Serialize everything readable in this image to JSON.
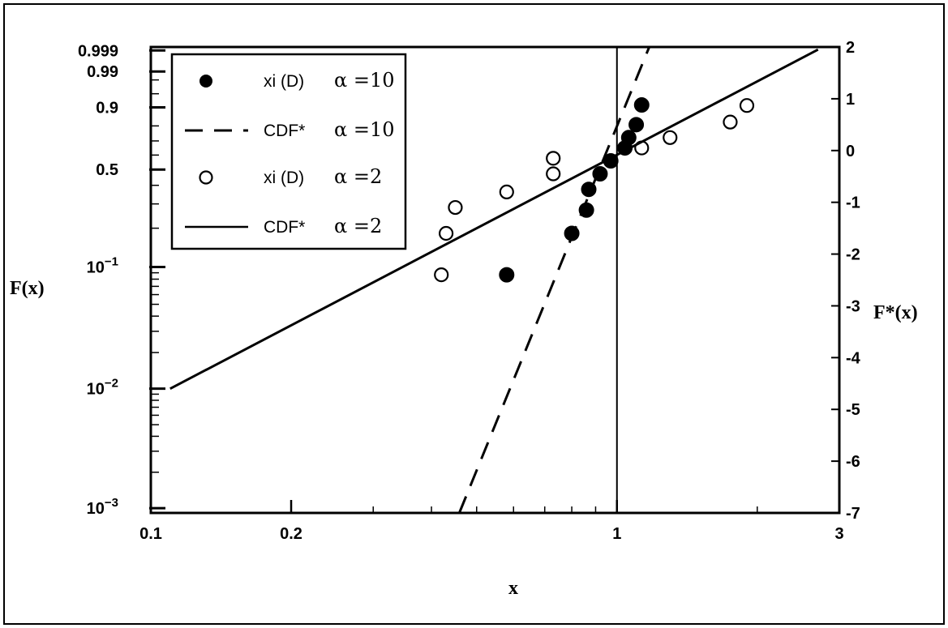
{
  "chart_data": {
    "type": "scatter",
    "x_scale": "log",
    "xlim": [
      0.1,
      3
    ],
    "xlabel": "x",
    "ylabel_left": "F(x)",
    "ylabel_right": "F*(x)",
    "right_ylim": [
      -7,
      2
    ],
    "x_ticks": [
      {
        "value": 0.1,
        "label": "0.1"
      },
      {
        "value": 0.2,
        "label": "0.2"
      },
      {
        "value": 1,
        "label": "1"
      },
      {
        "value": 3,
        "label": "3"
      }
    ],
    "left_ticks": [
      {
        "fstar": 1.9326,
        "label": "0.999"
      },
      {
        "fstar": 1.5272,
        "label": "0.99"
      },
      {
        "fstar": 0.834,
        "label": "0.9"
      },
      {
        "fstar": -0.3665,
        "label": "0.5"
      },
      {
        "fstar": -2.2504,
        "label": "10^-1"
      },
      {
        "fstar": -4.6002,
        "label": "10^-2"
      },
      {
        "fstar": -6.9073,
        "label": "10^-3"
      }
    ],
    "right_ticks": [
      2,
      1,
      0,
      -1,
      -2,
      -3,
      -4,
      -5,
      -6,
      -7
    ],
    "series": [
      {
        "name": "xi (D)",
        "alpha_label": "α =10",
        "kind": "points",
        "marker": "filled-circle",
        "points": [
          {
            "x": 0.58,
            "y": -2.4
          },
          {
            "x": 0.8,
            "y": -1.6
          },
          {
            "x": 0.86,
            "y": -1.15
          },
          {
            "x": 0.87,
            "y": -0.75
          },
          {
            "x": 0.92,
            "y": -0.45
          },
          {
            "x": 0.97,
            "y": -0.2
          },
          {
            "x": 1.04,
            "y": 0.05
          },
          {
            "x": 1.06,
            "y": 0.25
          },
          {
            "x": 1.1,
            "y": 0.5
          },
          {
            "x": 1.13,
            "y": 0.88
          }
        ]
      },
      {
        "name": "CDF*",
        "alpha_label": "α =10",
        "kind": "line",
        "style": "dashed",
        "points": [
          {
            "x": 0.459,
            "y": -7
          },
          {
            "x": 1.173,
            "y": 2
          }
        ]
      },
      {
        "name": "xi (D)",
        "alpha_label": "α =2",
        "kind": "points",
        "marker": "open-circle",
        "points": [
          {
            "x": 0.42,
            "y": -2.4
          },
          {
            "x": 0.43,
            "y": -1.6
          },
          {
            "x": 0.45,
            "y": -1.1
          },
          {
            "x": 0.58,
            "y": -0.8
          },
          {
            "x": 0.73,
            "y": -0.45
          },
          {
            "x": 0.73,
            "y": -0.15
          },
          {
            "x": 1.13,
            "y": 0.05
          },
          {
            "x": 1.3,
            "y": 0.25
          },
          {
            "x": 1.75,
            "y": 0.55
          },
          {
            "x": 1.9,
            "y": 0.87
          }
        ]
      },
      {
        "name": "CDF*",
        "alpha_label": "α =2",
        "kind": "line",
        "style": "solid",
        "points": [
          {
            "x": 0.11,
            "y": -4.6
          },
          {
            "x": 2.7,
            "y": 1.95
          }
        ]
      }
    ],
    "reference_line_x": 1,
    "legend_position": "top-left"
  }
}
